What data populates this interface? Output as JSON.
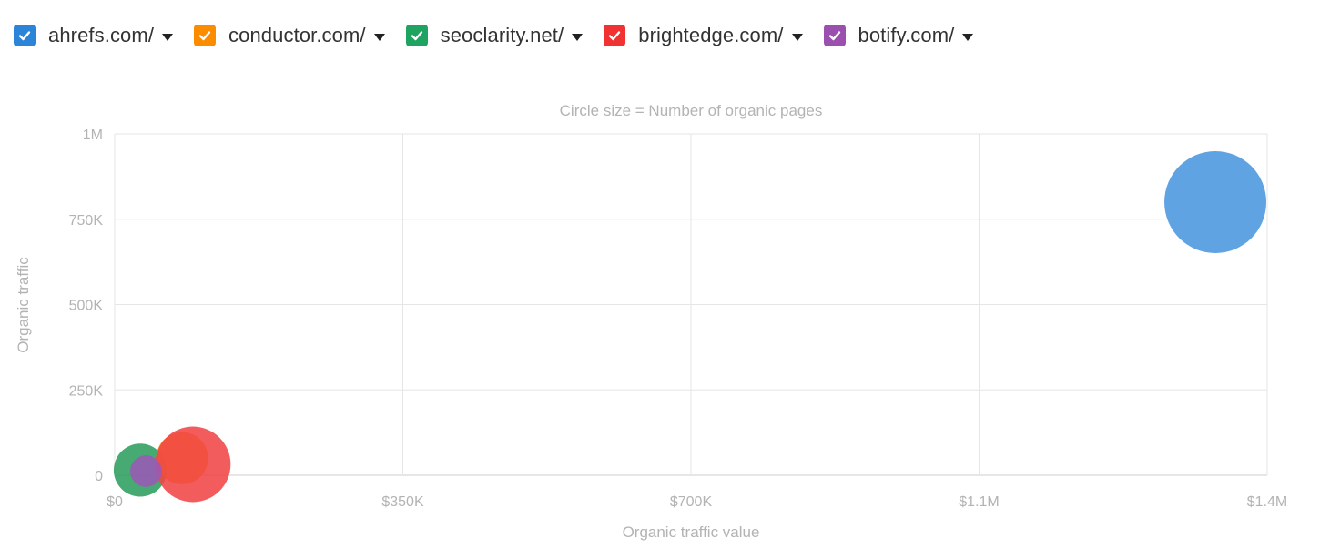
{
  "legend": {
    "items": [
      {
        "label": "ahrefs.com/",
        "color": "#2c84d9",
        "checked": true
      },
      {
        "label": "conductor.com/",
        "color": "#fb8c00",
        "checked": true
      },
      {
        "label": "seoclarity.net/",
        "color": "#1fa360",
        "checked": true
      },
      {
        "label": "brightedge.com/",
        "color": "#f03232",
        "checked": true
      },
      {
        "label": "botify.com/",
        "color": "#9b4fae",
        "checked": true
      }
    ]
  },
  "chart_data": {
    "type": "scatter",
    "subtitle": "Circle size = Number of organic pages",
    "xlabel": "Organic traffic value",
    "ylabel": "Organic traffic",
    "xlim": [
      0,
      1400000
    ],
    "ylim": [
      0,
      1000000
    ],
    "x_ticks": [
      {
        "value": 0,
        "label": "$0"
      },
      {
        "value": 350000,
        "label": "$350K"
      },
      {
        "value": 700000,
        "label": "$700K"
      },
      {
        "value": 1050000,
        "label": "$1.1M"
      },
      {
        "value": 1400000,
        "label": "$1.4M"
      }
    ],
    "y_ticks": [
      {
        "value": 0,
        "label": "0"
      },
      {
        "value": 250000,
        "label": "250K"
      },
      {
        "value": 500000,
        "label": "500K"
      },
      {
        "value": 750000,
        "label": "750K"
      },
      {
        "value": 1000000,
        "label": "1M"
      }
    ],
    "grid": true,
    "series": [
      {
        "name": "ahrefs.com/",
        "color": "#4a96de",
        "x": 1337000,
        "y": 800000,
        "size_rel": 1.0
      },
      {
        "name": "seoclarity.net/",
        "color": "#2e9e5e",
        "x": 31000,
        "y": 15000,
        "size_rel": 0.52
      },
      {
        "name": "conductor.com/",
        "color": "#fb8c00",
        "x": 82000,
        "y": 50000,
        "size_rel": 0.51
      },
      {
        "name": "brightedge.com/",
        "color": "#f04545",
        "x": 95000,
        "y": 32000,
        "size_rel": 0.74
      },
      {
        "name": "botify.com/",
        "color": "#9b59b6",
        "x": 38000,
        "y": 12000,
        "size_rel": 0.31
      }
    ]
  }
}
